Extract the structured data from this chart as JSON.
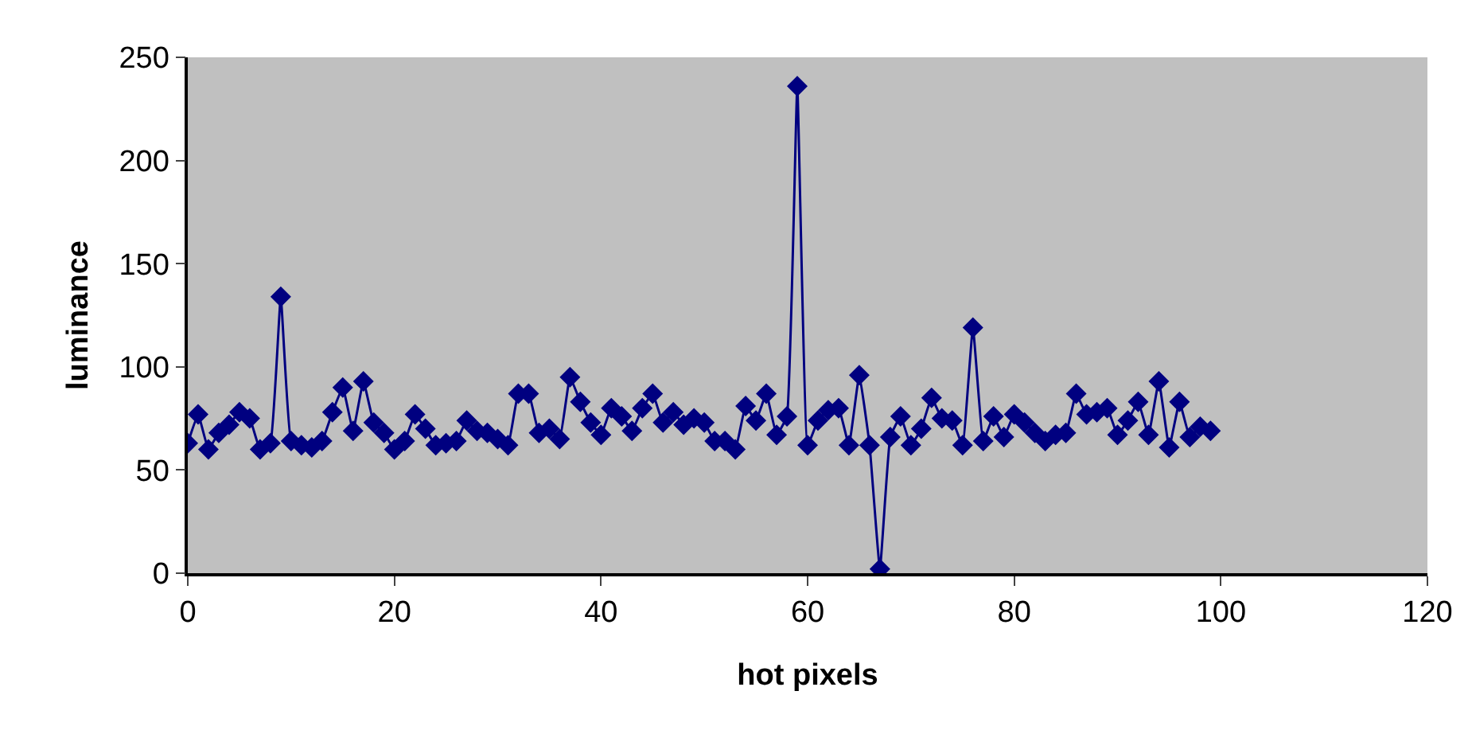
{
  "chart_data": {
    "type": "line",
    "xlabel": "hot pixels",
    "ylabel": "luminance",
    "x": [
      0,
      1,
      2,
      3,
      4,
      5,
      6,
      7,
      8,
      9,
      10,
      11,
      12,
      13,
      14,
      15,
      16,
      17,
      18,
      19,
      20,
      21,
      22,
      23,
      24,
      25,
      26,
      27,
      28,
      29,
      30,
      31,
      32,
      33,
      34,
      35,
      36,
      37,
      38,
      39,
      40,
      41,
      42,
      43,
      44,
      45,
      46,
      47,
      48,
      49,
      50,
      51,
      52,
      53,
      54,
      55,
      56,
      57,
      58,
      59,
      60,
      61,
      62,
      63,
      64,
      65,
      66,
      67,
      68,
      69,
      70,
      71,
      72,
      73,
      74,
      75,
      76,
      77,
      78,
      79,
      80,
      81,
      82,
      83,
      84,
      85,
      86,
      87,
      88,
      89,
      90,
      91,
      92,
      93,
      94,
      95,
      96,
      97,
      98,
      99
    ],
    "series": [
      {
        "color": "#000080",
        "values": [
          63,
          77,
          60,
          68,
          72,
          78,
          75,
          60,
          63,
          134,
          64,
          62,
          61,
          64,
          78,
          90,
          69,
          93,
          73,
          68,
          60,
          64,
          77,
          70,
          62,
          63,
          64,
          74,
          69,
          68,
          65,
          62,
          87,
          87,
          68,
          70,
          65,
          95,
          83,
          73,
          67,
          80,
          76,
          69,
          80,
          87,
          73,
          78,
          72,
          75,
          73,
          64,
          64,
          60,
          81,
          74,
          87,
          67,
          76,
          236,
          62,
          74,
          79,
          80,
          62,
          96,
          62,
          2,
          66,
          76,
          62,
          70,
          85,
          75,
          74,
          62,
          119,
          64,
          76,
          66,
          77,
          73,
          68,
          64,
          67,
          68,
          87,
          77,
          78,
          80,
          67,
          74,
          83,
          67,
          93,
          61,
          83,
          66,
          71,
          69
        ]
      }
    ],
    "xlim": [
      0,
      120
    ],
    "xticks": [
      0,
      20,
      40,
      60,
      80,
      100,
      120
    ],
    "ylim": [
      0,
      250
    ],
    "yticks": [
      0,
      50,
      100,
      150,
      200,
      250
    ],
    "grid": false,
    "legend": false,
    "marker": "diamond",
    "line_style": "solid"
  }
}
